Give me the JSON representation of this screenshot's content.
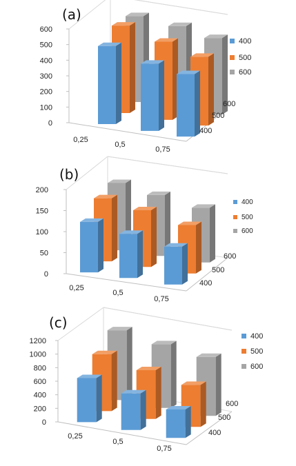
{
  "colors": {
    "s400": "#5b9bd5",
    "s500": "#ed7d31",
    "s600": "#a5a5a5"
  },
  "chart_data": [
    {
      "type": "bar",
      "title": "(a)",
      "categories": [
        "0,25",
        "0,5",
        "0,75"
      ],
      "depth_categories": [
        "400",
        "500",
        "600"
      ],
      "series": [
        {
          "name": "400",
          "values": [
            500,
            430,
            400
          ]
        },
        {
          "name": "500",
          "values": [
            560,
            500,
            440
          ]
        },
        {
          "name": "600",
          "values": [
            550,
            530,
            490
          ]
        }
      ],
      "ylim": [
        0,
        600
      ],
      "yticks": [
        "0",
        "100",
        "200",
        "300",
        "400",
        "500",
        "600"
      ],
      "legend_position": "right",
      "grid": false
    },
    {
      "type": "bar",
      "title": "(b)",
      "categories": [
        "0,25",
        "0,5",
        "0,75"
      ],
      "depth_categories": [
        "400",
        "500",
        "600"
      ],
      "series": [
        {
          "name": "400",
          "values": [
            120,
            105,
            90
          ]
        },
        {
          "name": "500",
          "values": [
            150,
            135,
            115
          ]
        },
        {
          "name": "600",
          "values": [
            160,
            145,
            130
          ]
        }
      ],
      "ylim": [
        0,
        200
      ],
      "yticks": [
        "0",
        "50",
        "100",
        "150",
        "200"
      ],
      "legend_position": "right",
      "grid": false
    },
    {
      "type": "bar",
      "title": "(c)",
      "categories": [
        "0,25",
        "0,5",
        "0,75"
      ],
      "depth_categories": [
        "400",
        "500",
        "600"
      ],
      "series": [
        {
          "name": "400",
          "values": [
            650,
            540,
            420
          ]
        },
        {
          "name": "500",
          "values": [
            840,
            720,
            620
          ]
        },
        {
          "name": "600",
          "values": [
            1030,
            940,
            870
          ]
        }
      ],
      "ylim": [
        0,
        1200
      ],
      "yticks": [
        "0",
        "200",
        "400",
        "600",
        "800",
        "1000",
        "1200"
      ],
      "legend_position": "right",
      "grid": false
    }
  ]
}
